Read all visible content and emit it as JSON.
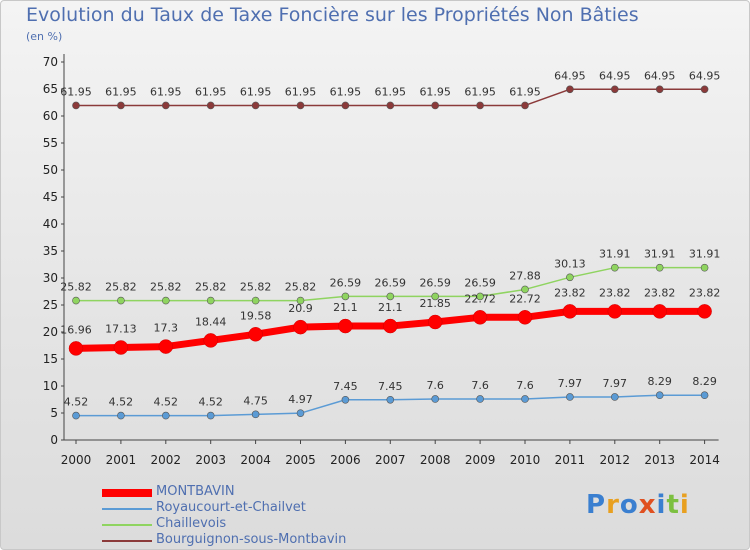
{
  "header": {
    "title": "Evolution du Taux de Taxe Foncière sur les Propriétés Non Bâties",
    "unit": "(en %)"
  },
  "brand": {
    "logo_text": "Proxiti"
  },
  "chart_data": {
    "type": "line",
    "title": "Evolution du Taux de Taxe Foncière sur les Propriétés Non Bâties",
    "ylabel": "(en %)",
    "xlabel": "",
    "x": [
      "2000",
      "2001",
      "2002",
      "2003",
      "2004",
      "2005",
      "2006",
      "2007",
      "2008",
      "2009",
      "2010",
      "2011",
      "2012",
      "2013",
      "2014"
    ],
    "ylim": [
      0,
      70
    ],
    "yticks": [
      0,
      5,
      10,
      15,
      20,
      25,
      30,
      35,
      40,
      45,
      50,
      55,
      60,
      65,
      70
    ],
    "grid": false,
    "legend_position": "bottom-left",
    "series": [
      {
        "name": "MONTBAVIN",
        "color": "#ff0000",
        "values": [
          16.96,
          17.13,
          17.3,
          18.44,
          19.58,
          20.9,
          21.1,
          21.1,
          21.85,
          22.72,
          22.72,
          23.82,
          23.82,
          23.82,
          23.82
        ],
        "labels": [
          "16.96",
          "17.13",
          "17.3",
          "18.44",
          "19.58",
          "20.9",
          "21.1",
          "21.1",
          "21.85",
          "22.72",
          "22.72",
          "23.82",
          "23.82",
          "23.82",
          "23.82"
        ]
      },
      {
        "name": "Royaucourt-et-Chailvet",
        "color": "#5b9bd5",
        "values": [
          4.52,
          4.52,
          4.52,
          4.52,
          4.75,
          4.97,
          7.45,
          7.45,
          7.6,
          7.6,
          7.6,
          7.97,
          7.97,
          8.29,
          8.29
        ],
        "labels": [
          "4.52",
          "4.52",
          "4.52",
          "4.52",
          "4.75",
          "4.97",
          "7.45",
          "7.45",
          "7.6",
          "7.6",
          "7.6",
          "7.97",
          "7.97",
          "8.29",
          "8.29"
        ]
      },
      {
        "name": "Chaillevois",
        "color": "#8fd460",
        "values": [
          25.82,
          25.82,
          25.82,
          25.82,
          25.82,
          25.82,
          26.59,
          26.59,
          26.59,
          26.59,
          27.88,
          30.13,
          31.91,
          31.91,
          31.91
        ],
        "labels": [
          "25.82",
          "25.82",
          "25.82",
          "25.82",
          "25.82",
          "25.82",
          "26.59",
          "26.59",
          "26.59",
          "26.59",
          "27.88",
          "30.13",
          "31.91",
          "31.91",
          "31.91"
        ]
      },
      {
        "name": "Bourguignon-sous-Montbavin",
        "color": "#8b3a3a",
        "values": [
          61.95,
          61.95,
          61.95,
          61.95,
          61.95,
          61.95,
          61.95,
          61.95,
          61.95,
          61.95,
          61.95,
          64.95,
          64.95,
          64.95,
          64.95
        ],
        "labels": [
          "61.95",
          "61.95",
          "61.95",
          "61.95",
          "61.95",
          "61.95",
          "61.95",
          "61.95",
          "61.95",
          "61.95",
          "61.95",
          "64.95",
          "64.95",
          "64.95",
          "64.95"
        ]
      }
    ]
  }
}
